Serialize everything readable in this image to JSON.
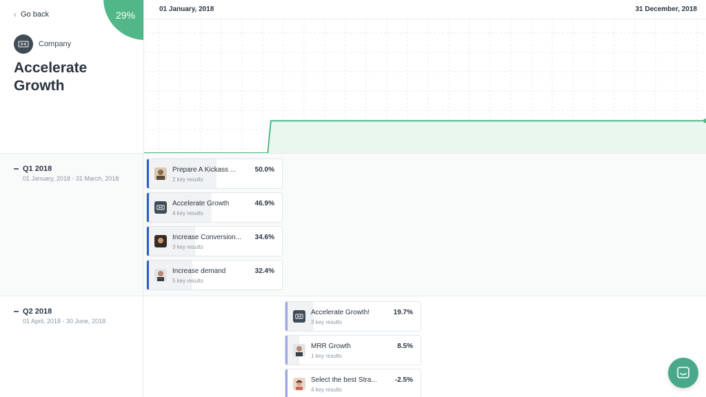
{
  "nav": {
    "back_label": "Go back"
  },
  "objective": {
    "progress_label": "29%",
    "progress": 0.29,
    "owner_label": "Company",
    "title": "Accelerate Growth",
    "accent_color": "#52b788"
  },
  "timeline": {
    "start_date": "01 January, 2018",
    "end_date": "31 December, 2018"
  },
  "chart_data": {
    "type": "area",
    "title": "",
    "xlabel": "",
    "ylabel": "",
    "x": [
      "2018-01-01",
      "2018-03-22",
      "2018-03-24",
      "2018-12-31"
    ],
    "series": [
      {
        "values": [
          0,
          0,
          29,
          29
        ]
      }
    ],
    "xlim": [
      "2018-01-01",
      "2018-12-31"
    ],
    "ylim": [
      0,
      100
    ],
    "grid": true,
    "color": "#52b788"
  },
  "quarters": [
    {
      "title": "Q1 2018",
      "range": "01 January, 2018 - 31 March, 2018",
      "accent_color": "#2c5fd1",
      "objectives": [
        {
          "title": "Prepare A Kickass ...",
          "sub": "2 key results",
          "pct": "50.0%",
          "progress": 0.5,
          "avatar": "user-avatar-1-icon"
        },
        {
          "title": "Accelerate Growth",
          "sub": "4 key results",
          "pct": "46.9%",
          "progress": 0.469,
          "avatar": "company-logo-icon"
        },
        {
          "title": "Increase Conversion...",
          "sub": "3 key results",
          "pct": "34.6%",
          "progress": 0.346,
          "avatar": "user-avatar-2-icon"
        },
        {
          "title": "Increase demand",
          "sub": "5 key results",
          "pct": "32.4%",
          "progress": 0.324,
          "avatar": "user-avatar-3-icon"
        }
      ]
    },
    {
      "title": "Q2 2018",
      "range": "01 April, 2018 - 30 June, 2018",
      "accent_color": "#9aa6e0",
      "objectives": [
        {
          "title": "Accelerate Growth!",
          "sub": "3 key results",
          "pct": "19.7%",
          "progress": 0.197,
          "avatar": "company-logo-icon"
        },
        {
          "title": "MRR Growth",
          "sub": "1 key results",
          "pct": "8.5%",
          "progress": 0.085,
          "avatar": "user-avatar-3-icon"
        },
        {
          "title": "Select the best Stra...",
          "sub": "4 key results",
          "pct": "-2.5%",
          "progress": 0.0,
          "avatar": "user-avatar-4-icon"
        }
      ]
    }
  ],
  "chat": {
    "icon": "chat-icon",
    "color": "#4aa88a"
  }
}
